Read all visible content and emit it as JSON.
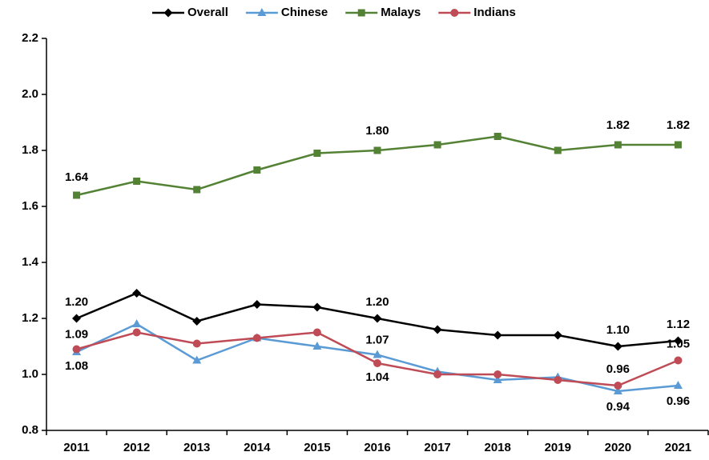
{
  "chart_data": {
    "type": "line",
    "categories": [
      "2011",
      "2012",
      "2013",
      "2014",
      "2015",
      "2016",
      "2017",
      "2018",
      "2019",
      "2020",
      "2021"
    ],
    "series": [
      {
        "name": "Overall",
        "color": "#000000",
        "marker": "diamond",
        "values": [
          1.2,
          1.29,
          1.19,
          1.25,
          1.24,
          1.2,
          1.16,
          1.14,
          1.14,
          1.1,
          1.12
        ],
        "value_labels": [
          "1.20",
          null,
          null,
          null,
          null,
          "1.20",
          null,
          null,
          null,
          "1.10",
          "1.12"
        ]
      },
      {
        "name": "Chinese",
        "color": "#5b9bd5",
        "marker": "triangle",
        "values": [
          1.08,
          1.18,
          1.05,
          1.13,
          1.1,
          1.07,
          1.01,
          0.98,
          0.99,
          0.94,
          0.96
        ],
        "value_labels": [
          "1.08",
          null,
          null,
          null,
          null,
          "1.07",
          null,
          null,
          null,
          "0.94",
          "0.96"
        ]
      },
      {
        "name": "Malays",
        "color": "#548235",
        "marker": "square",
        "values": [
          1.64,
          1.69,
          1.66,
          1.73,
          1.79,
          1.8,
          1.82,
          1.85,
          1.8,
          1.82,
          1.82
        ],
        "value_labels": [
          "1.64",
          null,
          null,
          null,
          null,
          "1.80",
          null,
          null,
          null,
          "1.82",
          "1.82"
        ]
      },
      {
        "name": "Indians",
        "color": "#be4b55",
        "marker": "circle",
        "values": [
          1.09,
          1.15,
          1.11,
          1.13,
          1.15,
          1.04,
          1.0,
          1.0,
          0.98,
          0.96,
          1.05
        ],
        "value_labels": [
          "1.09",
          null,
          null,
          null,
          null,
          "1.04",
          null,
          null,
          null,
          "0.96",
          "1.05"
        ]
      }
    ],
    "ylim": [
      0.8,
      2.2
    ],
    "yticks": [
      0.8,
      {
        "value": 1.0,
        "label": "1.0"
      },
      1.2,
      1.4,
      1.6,
      1.8,
      {
        "value": 2.0,
        "label": "2.0"
      },
      2.2
    ],
    "grid": false,
    "legend": "top"
  }
}
